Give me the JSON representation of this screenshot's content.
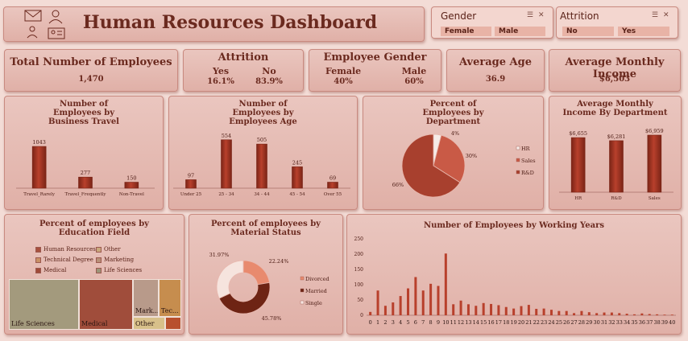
{
  "header": {
    "title": "Human Resources Dashboard",
    "icons": [
      "envelope-person-icon",
      "person-icon",
      "id-card-icon"
    ]
  },
  "slicers": [
    {
      "title": "Gender",
      "items": [
        "Female",
        "Male"
      ]
    },
    {
      "title": "Attrition",
      "items": [
        "No",
        "Yes"
      ]
    }
  ],
  "kpis": {
    "total": {
      "title": "Total Number of Employees",
      "value": "1,470"
    },
    "attrition": {
      "title": "Attrition",
      "yes_label": "Yes",
      "yes_value": "16.1%",
      "no_label": "No",
      "no_value": "83.9%"
    },
    "gender": {
      "title": "Employee Gender",
      "female_label": "Female",
      "female_value": "40%",
      "male_label": "Male",
      "male_value": "60%"
    },
    "age": {
      "title": "Average Age",
      "value": "36.9"
    },
    "income": {
      "title": "Average Monthly Income",
      "value": "$6,503"
    }
  },
  "colors": {
    "bar": "#b8402c",
    "bar_dark": "#7a2416",
    "panel": "#e6bbb2",
    "title": "#6b2a1f"
  },
  "chart_data": [
    {
      "id": "travel",
      "type": "bar",
      "title": "Number of Employees by Business Travel",
      "categories": [
        "Travel_Rarely",
        "Travel_Frequently",
        "Non-Travel"
      ],
      "values": [
        1043,
        277,
        150
      ],
      "labels": [
        "1043",
        "277",
        "150"
      ]
    },
    {
      "id": "age",
      "type": "bar",
      "title": "Number of Employees  by Employees Age",
      "categories": [
        "Under 25",
        "25 - 34",
        "34 - 44",
        "45 - 54",
        "Over 55"
      ],
      "values": [
        97,
        554,
        505,
        245,
        69
      ],
      "labels": [
        "97",
        "554",
        "505",
        "245",
        "69"
      ]
    },
    {
      "id": "dept",
      "type": "pie",
      "title": "Percent of Employees  by Department",
      "categories": [
        "HR",
        "Sales",
        "R&D"
      ],
      "values": [
        4,
        30,
        66
      ],
      "labels": [
        "4%",
        "30%",
        "66%"
      ],
      "colors": [
        "#f6ece8",
        "#c95a46",
        "#a8402e"
      ],
      "legend": "right"
    },
    {
      "id": "income_dept",
      "type": "bar",
      "title": "Average Monthly Income By Department",
      "categories": [
        "HR",
        "R&D",
        "Sales"
      ],
      "values": [
        6655,
        6281,
        6959
      ],
      "labels": [
        "$6,655",
        "$6,281",
        "$6,959"
      ]
    },
    {
      "id": "education",
      "type": "treemap",
      "title": "Percent of employees by Education Field",
      "categories": [
        "Human Resources",
        "Other",
        "Technical Degree",
        "Marketing",
        "Medical",
        "Life Sciences"
      ],
      "values": [
        27,
        82,
        132,
        159,
        464,
        606
      ],
      "legend_colors": [
        "#a8503e",
        "#c9a87c",
        "#c99066",
        "#b89078",
        "#a04a38",
        "#9c9478"
      ],
      "tiles": [
        {
          "label": "Life Sciences",
          "color": "#a39a7d"
        },
        {
          "label": "Medical",
          "color": "#a04d3b"
        },
        {
          "label": "Mark...",
          "color": "#b89a8a"
        },
        {
          "label": "Tec... De...",
          "color": "#c68d4e"
        },
        {
          "label": "Other",
          "color": "#d8c08a"
        },
        {
          "label": "...",
          "color": "#b8502e"
        }
      ]
    },
    {
      "id": "marital",
      "type": "pie",
      "title": "Percent of employees by Material Status",
      "categories": [
        "Divorced",
        "Married",
        "Single"
      ],
      "values": [
        22.24,
        45.78,
        31.97
      ],
      "labels": [
        "22.24%",
        "45.78%",
        "31.97%"
      ],
      "colors": [
        "#e88a6e",
        "#6e2414",
        "#f6e4de"
      ],
      "legend": "right"
    },
    {
      "id": "years",
      "type": "bar",
      "title": "Number of Employees by Working Years",
      "x": [
        0,
        1,
        2,
        3,
        4,
        5,
        6,
        7,
        8,
        9,
        10,
        11,
        12,
        13,
        14,
        15,
        16,
        17,
        18,
        19,
        20,
        21,
        22,
        23,
        24,
        25,
        26,
        27,
        28,
        29,
        30,
        31,
        32,
        33,
        34,
        35,
        36,
        37,
        38,
        39,
        40
      ],
      "values": [
        11,
        81,
        31,
        42,
        63,
        88,
        125,
        81,
        103,
        96,
        202,
        36,
        48,
        36,
        31,
        40,
        37,
        33,
        27,
        22,
        30,
        34,
        21,
        22,
        18,
        14,
        14,
        7,
        14,
        10,
        7,
        9,
        9,
        7,
        5,
        3,
        6,
        4,
        3,
        2,
        2
      ],
      "yticks": [
        0,
        50,
        100,
        150,
        200,
        250
      ],
      "ylim": [
        0,
        250
      ]
    }
  ]
}
